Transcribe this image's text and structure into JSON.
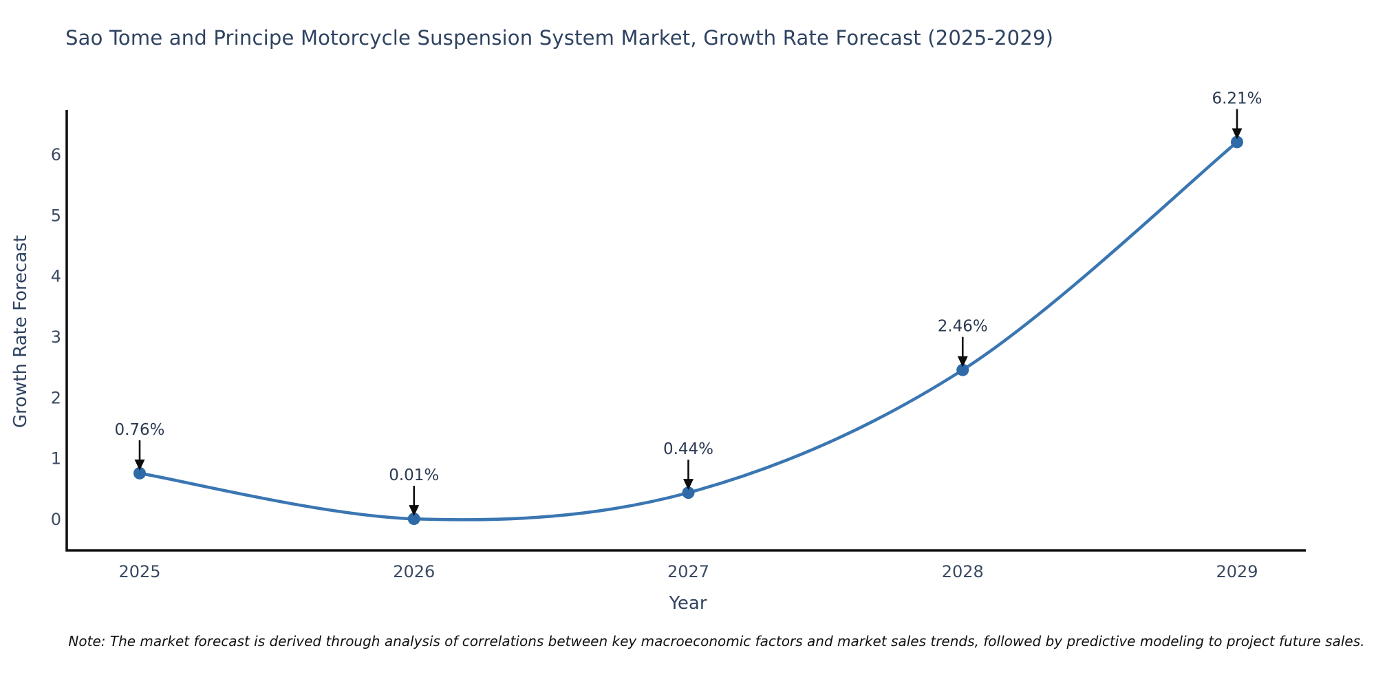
{
  "chart": {
    "title": "Sao Tome and Principe Motorcycle Suspension System Market, Growth Rate Forecast (2025-2029)",
    "ylabel": "Growth Rate Forecast",
    "xlabel": "Year",
    "note": "Note: The market forecast is derived through analysis of correlations between key macroeconomic factors and market sales trends, followed by predictive modeling to project future sales."
  },
  "chart_data": {
    "type": "line",
    "line_shape": "spline",
    "title": "Sao Tome and Principe Motorcycle Suspension System Market, Growth Rate Forecast (2025-2029)",
    "xlabel": "Year",
    "ylabel": "Growth Rate Forecast",
    "categories": [
      "2025",
      "2026",
      "2027",
      "2028",
      "2029"
    ],
    "values": [
      0.76,
      0.01,
      0.44,
      2.46,
      6.21
    ],
    "point_labels": [
      "0.76%",
      "0.01%",
      "0.44%",
      "2.46%",
      "6.21%"
    ],
    "yticks": [
      0,
      1,
      2,
      3,
      4,
      5,
      6
    ],
    "ylim": [
      -0.5,
      6.75
    ],
    "grid": false,
    "legend": false,
    "annotations_have_arrows": true,
    "colors": {
      "line": "#3a76b2",
      "marker": "#2e6aa8",
      "axis": "#111111",
      "tick_text": "#3a4a63",
      "title_text": "#2f4361",
      "annotation_text": "#2b3a52",
      "arrow": "#0d0d0d",
      "background": "#ffffff"
    }
  }
}
